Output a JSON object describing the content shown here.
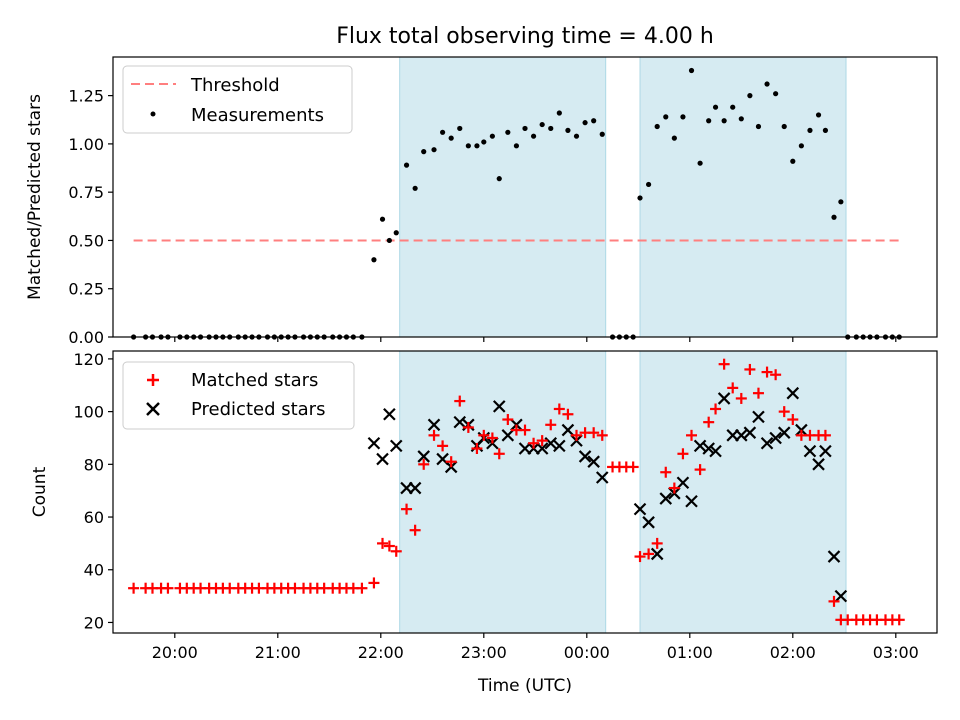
{
  "chart_data": [
    {
      "type": "scatter",
      "title": "Flux total observing time = 4.00 h",
      "xlabel": "",
      "ylabel": "Matched/Predicted stars",
      "xlim": [
        "19:24",
        "03:24"
      ],
      "ylim": [
        0,
        1.45
      ],
      "yticks": [
        "0.00",
        "0.25",
        "0.50",
        "0.75",
        "1.00",
        "1.25"
      ],
      "shaded_intervals": [
        [
          "22:11",
          "00:11"
        ],
        [
          "00:31",
          "02:31"
        ]
      ],
      "threshold": {
        "name": "Threshold",
        "value": 0.5,
        "x_range": [
          "19:36",
          "03:02"
        ],
        "color": "#ff7f7f"
      },
      "series": [
        {
          "name": "Measurements",
          "color": "#000000",
          "marker": "dot",
          "points": [
            [
              "19:36",
              0
            ],
            [
              "19:43",
              0
            ],
            [
              "19:47",
              0
            ],
            [
              "19:52",
              0
            ],
            [
              "19:56",
              0
            ],
            [
              "20:03",
              0
            ],
            [
              "20:07",
              0
            ],
            [
              "20:11",
              0
            ],
            [
              "20:15",
              0
            ],
            [
              "20:20",
              0
            ],
            [
              "20:24",
              0
            ],
            [
              "20:28",
              0
            ],
            [
              "20:32",
              0
            ],
            [
              "20:37",
              0
            ],
            [
              "20:41",
              0
            ],
            [
              "20:45",
              0
            ],
            [
              "20:49",
              0
            ],
            [
              "20:54",
              0
            ],
            [
              "20:58",
              0
            ],
            [
              "21:02",
              0
            ],
            [
              "21:06",
              0
            ],
            [
              "21:10",
              0
            ],
            [
              "21:15",
              0
            ],
            [
              "21:19",
              0
            ],
            [
              "21:23",
              0
            ],
            [
              "21:27",
              0
            ],
            [
              "21:32",
              0
            ],
            [
              "21:36",
              0
            ],
            [
              "21:40",
              0
            ],
            [
              "21:44",
              0
            ],
            [
              "21:49",
              0
            ],
            [
              "21:56",
              0.4
            ],
            [
              "22:01",
              0.61
            ],
            [
              "22:05",
              0.5
            ],
            [
              "22:09",
              0.54
            ],
            [
              "22:15",
              0.89
            ],
            [
              "22:20",
              0.77
            ],
            [
              "22:25",
              0.96
            ],
            [
              "22:31",
              0.97
            ],
            [
              "22:36",
              1.06
            ],
            [
              "22:41",
              1.03
            ],
            [
              "22:46",
              1.08
            ],
            [
              "22:51",
              0.99
            ],
            [
              "22:56",
              0.99
            ],
            [
              "23:00",
              1.01
            ],
            [
              "23:05",
              1.04
            ],
            [
              "23:09",
              0.82
            ],
            [
              "23:14",
              1.06
            ],
            [
              "23:19",
              0.99
            ],
            [
              "23:24",
              1.08
            ],
            [
              "23:29",
              1.04
            ],
            [
              "23:34",
              1.1
            ],
            [
              "23:39",
              1.08
            ],
            [
              "23:44",
              1.16
            ],
            [
              "23:49",
              1.07
            ],
            [
              "23:54",
              1.04
            ],
            [
              "23:59",
              1.11
            ],
            [
              "00:04",
              1.12
            ],
            [
              "00:09",
              1.05
            ],
            [
              "00:15",
              0
            ],
            [
              "00:19",
              0
            ],
            [
              "00:23",
              0
            ],
            [
              "00:27",
              0
            ],
            [
              "00:31",
              0.72
            ],
            [
              "00:36",
              0.79
            ],
            [
              "00:41",
              1.09
            ],
            [
              "00:46",
              1.14
            ],
            [
              "00:51",
              1.03
            ],
            [
              "00:56",
              1.14
            ],
            [
              "01:01",
              1.38
            ],
            [
              "01:06",
              0.9
            ],
            [
              "01:11",
              1.12
            ],
            [
              "01:15",
              1.19
            ],
            [
              "01:20",
              1.12
            ],
            [
              "01:25",
              1.19
            ],
            [
              "01:30",
              1.13
            ],
            [
              "01:35",
              1.25
            ],
            [
              "01:40",
              1.09
            ],
            [
              "01:45",
              1.31
            ],
            [
              "01:50",
              1.26
            ],
            [
              "01:55",
              1.09
            ],
            [
              "02:00",
              0.91
            ],
            [
              "02:05",
              0.99
            ],
            [
              "02:10",
              1.07
            ],
            [
              "02:15",
              1.15
            ],
            [
              "02:19",
              1.07
            ],
            [
              "02:24",
              0.62
            ],
            [
              "02:28",
              0.7
            ],
            [
              "02:32",
              0
            ],
            [
              "02:37",
              0
            ],
            [
              "02:41",
              0
            ],
            [
              "02:45",
              0
            ],
            [
              "02:49",
              0
            ],
            [
              "02:54",
              0
            ],
            [
              "02:58",
              0
            ],
            [
              "03:02",
              0
            ]
          ]
        }
      ],
      "legend": [
        "Threshold",
        "Measurements"
      ],
      "legend_loc": "upper left",
      "grid": false
    },
    {
      "type": "scatter",
      "title": "",
      "xlabel": "Time (UTC)",
      "ylabel": "Count",
      "xlim": [
        "19:24",
        "03:24"
      ],
      "ylim": [
        16,
        123
      ],
      "yticks": [
        "20",
        "40",
        "60",
        "80",
        "100",
        "120"
      ],
      "xticks": [
        "20:00",
        "21:00",
        "22:00",
        "23:00",
        "00:00",
        "01:00",
        "02:00",
        "03:00"
      ],
      "shaded_intervals": [
        [
          "22:11",
          "00:11"
        ],
        [
          "00:31",
          "02:31"
        ]
      ],
      "series": [
        {
          "name": "Matched stars",
          "color": "#ff0000",
          "marker": "plus",
          "points": [
            [
              "19:36",
              33
            ],
            [
              "19:43",
              33
            ],
            [
              "19:47",
              33
            ],
            [
              "19:52",
              33
            ],
            [
              "19:56",
              33
            ],
            [
              "20:03",
              33
            ],
            [
              "20:07",
              33
            ],
            [
              "20:11",
              33
            ],
            [
              "20:15",
              33
            ],
            [
              "20:20",
              33
            ],
            [
              "20:24",
              33
            ],
            [
              "20:28",
              33
            ],
            [
              "20:32",
              33
            ],
            [
              "20:37",
              33
            ],
            [
              "20:41",
              33
            ],
            [
              "20:45",
              33
            ],
            [
              "20:49",
              33
            ],
            [
              "20:54",
              33
            ],
            [
              "20:58",
              33
            ],
            [
              "21:02",
              33
            ],
            [
              "21:06",
              33
            ],
            [
              "21:10",
              33
            ],
            [
              "21:15",
              33
            ],
            [
              "21:19",
              33
            ],
            [
              "21:23",
              33
            ],
            [
              "21:27",
              33
            ],
            [
              "21:32",
              33
            ],
            [
              "21:36",
              33
            ],
            [
              "21:40",
              33
            ],
            [
              "21:44",
              33
            ],
            [
              "21:49",
              33
            ],
            [
              "21:56",
              35
            ],
            [
              "22:01",
              50
            ],
            [
              "22:05",
              49
            ],
            [
              "22:09",
              47
            ],
            [
              "22:15",
              63
            ],
            [
              "22:20",
              55
            ],
            [
              "22:25",
              80
            ],
            [
              "22:31",
              91
            ],
            [
              "22:36",
              87
            ],
            [
              "22:41",
              81
            ],
            [
              "22:46",
              104
            ],
            [
              "22:51",
              94
            ],
            [
              "22:56",
              86
            ],
            [
              "23:00",
              91
            ],
            [
              "23:05",
              90
            ],
            [
              "23:09",
              84
            ],
            [
              "23:14",
              97
            ],
            [
              "23:19",
              93
            ],
            [
              "23:24",
              93
            ],
            [
              "23:29",
              88
            ],
            [
              "23:34",
              89
            ],
            [
              "23:39",
              95
            ],
            [
              "23:44",
              101
            ],
            [
              "23:49",
              99
            ],
            [
              "23:54",
              91
            ],
            [
              "23:59",
              92
            ],
            [
              "00:04",
              92
            ],
            [
              "00:09",
              91
            ],
            [
              "00:15",
              79
            ],
            [
              "00:19",
              79
            ],
            [
              "00:23",
              79
            ],
            [
              "00:27",
              79
            ],
            [
              "00:31",
              45
            ],
            [
              "00:36",
              46
            ],
            [
              "00:41",
              50
            ],
            [
              "00:46",
              77
            ],
            [
              "00:51",
              71
            ],
            [
              "00:56",
              84
            ],
            [
              "01:01",
              91
            ],
            [
              "01:06",
              78
            ],
            [
              "01:11",
              96
            ],
            [
              "01:15",
              101
            ],
            [
              "01:20",
              118
            ],
            [
              "01:25",
              109
            ],
            [
              "01:30",
              105
            ],
            [
              "01:35",
              116
            ],
            [
              "01:40",
              107
            ],
            [
              "01:45",
              115
            ],
            [
              "01:50",
              114
            ],
            [
              "01:55",
              100
            ],
            [
              "02:00",
              97
            ],
            [
              "02:05",
              91
            ],
            [
              "02:10",
              91
            ],
            [
              "02:15",
              91
            ],
            [
              "02:19",
              91
            ],
            [
              "02:24",
              28
            ],
            [
              "02:28",
              21
            ],
            [
              "02:32",
              21
            ],
            [
              "02:37",
              21
            ],
            [
              "02:41",
              21
            ],
            [
              "02:45",
              21
            ],
            [
              "02:49",
              21
            ],
            [
              "02:54",
              21
            ],
            [
              "02:58",
              21
            ],
            [
              "03:02",
              21
            ]
          ]
        },
        {
          "name": "Predicted stars",
          "color": "#000000",
          "marker": "x",
          "points": [
            [
              "21:56",
              88
            ],
            [
              "22:01",
              82
            ],
            [
              "22:05",
              99
            ],
            [
              "22:09",
              87
            ],
            [
              "22:15",
              71
            ],
            [
              "22:20",
              71
            ],
            [
              "22:25",
              83
            ],
            [
              "22:31",
              95
            ],
            [
              "22:36",
              82
            ],
            [
              "22:41",
              79
            ],
            [
              "22:46",
              96
            ],
            [
              "22:51",
              95
            ],
            [
              "22:56",
              87
            ],
            [
              "23:00",
              90
            ],
            [
              "23:05",
              88
            ],
            [
              "23:09",
              102
            ],
            [
              "23:14",
              91
            ],
            [
              "23:19",
              95
            ],
            [
              "23:24",
              86
            ],
            [
              "23:29",
              86
            ],
            [
              "23:34",
              86
            ],
            [
              "23:39",
              88
            ],
            [
              "23:44",
              87
            ],
            [
              "23:49",
              93
            ],
            [
              "23:54",
              89
            ],
            [
              "23:59",
              83
            ],
            [
              "00:04",
              81
            ],
            [
              "00:09",
              75
            ],
            [
              "00:31",
              63
            ],
            [
              "00:36",
              58
            ],
            [
              "00:41",
              46
            ],
            [
              "00:46",
              67
            ],
            [
              "00:51",
              69
            ],
            [
              "00:56",
              73
            ],
            [
              "01:01",
              66
            ],
            [
              "01:06",
              87
            ],
            [
              "01:11",
              86
            ],
            [
              "01:15",
              85
            ],
            [
              "01:20",
              105
            ],
            [
              "01:25",
              91
            ],
            [
              "01:30",
              91
            ],
            [
              "01:35",
              92
            ],
            [
              "01:40",
              98
            ],
            [
              "01:45",
              88
            ],
            [
              "01:50",
              90
            ],
            [
              "01:55",
              92
            ],
            [
              "02:00",
              107
            ],
            [
              "02:05",
              93
            ],
            [
              "02:10",
              85
            ],
            [
              "02:15",
              80
            ],
            [
              "02:19",
              85
            ],
            [
              "02:24",
              45
            ],
            [
              "02:28",
              30
            ]
          ]
        }
      ],
      "legend": [
        "Matched stars",
        "Predicted stars"
      ],
      "legend_loc": "upper left",
      "grid": false
    }
  ]
}
